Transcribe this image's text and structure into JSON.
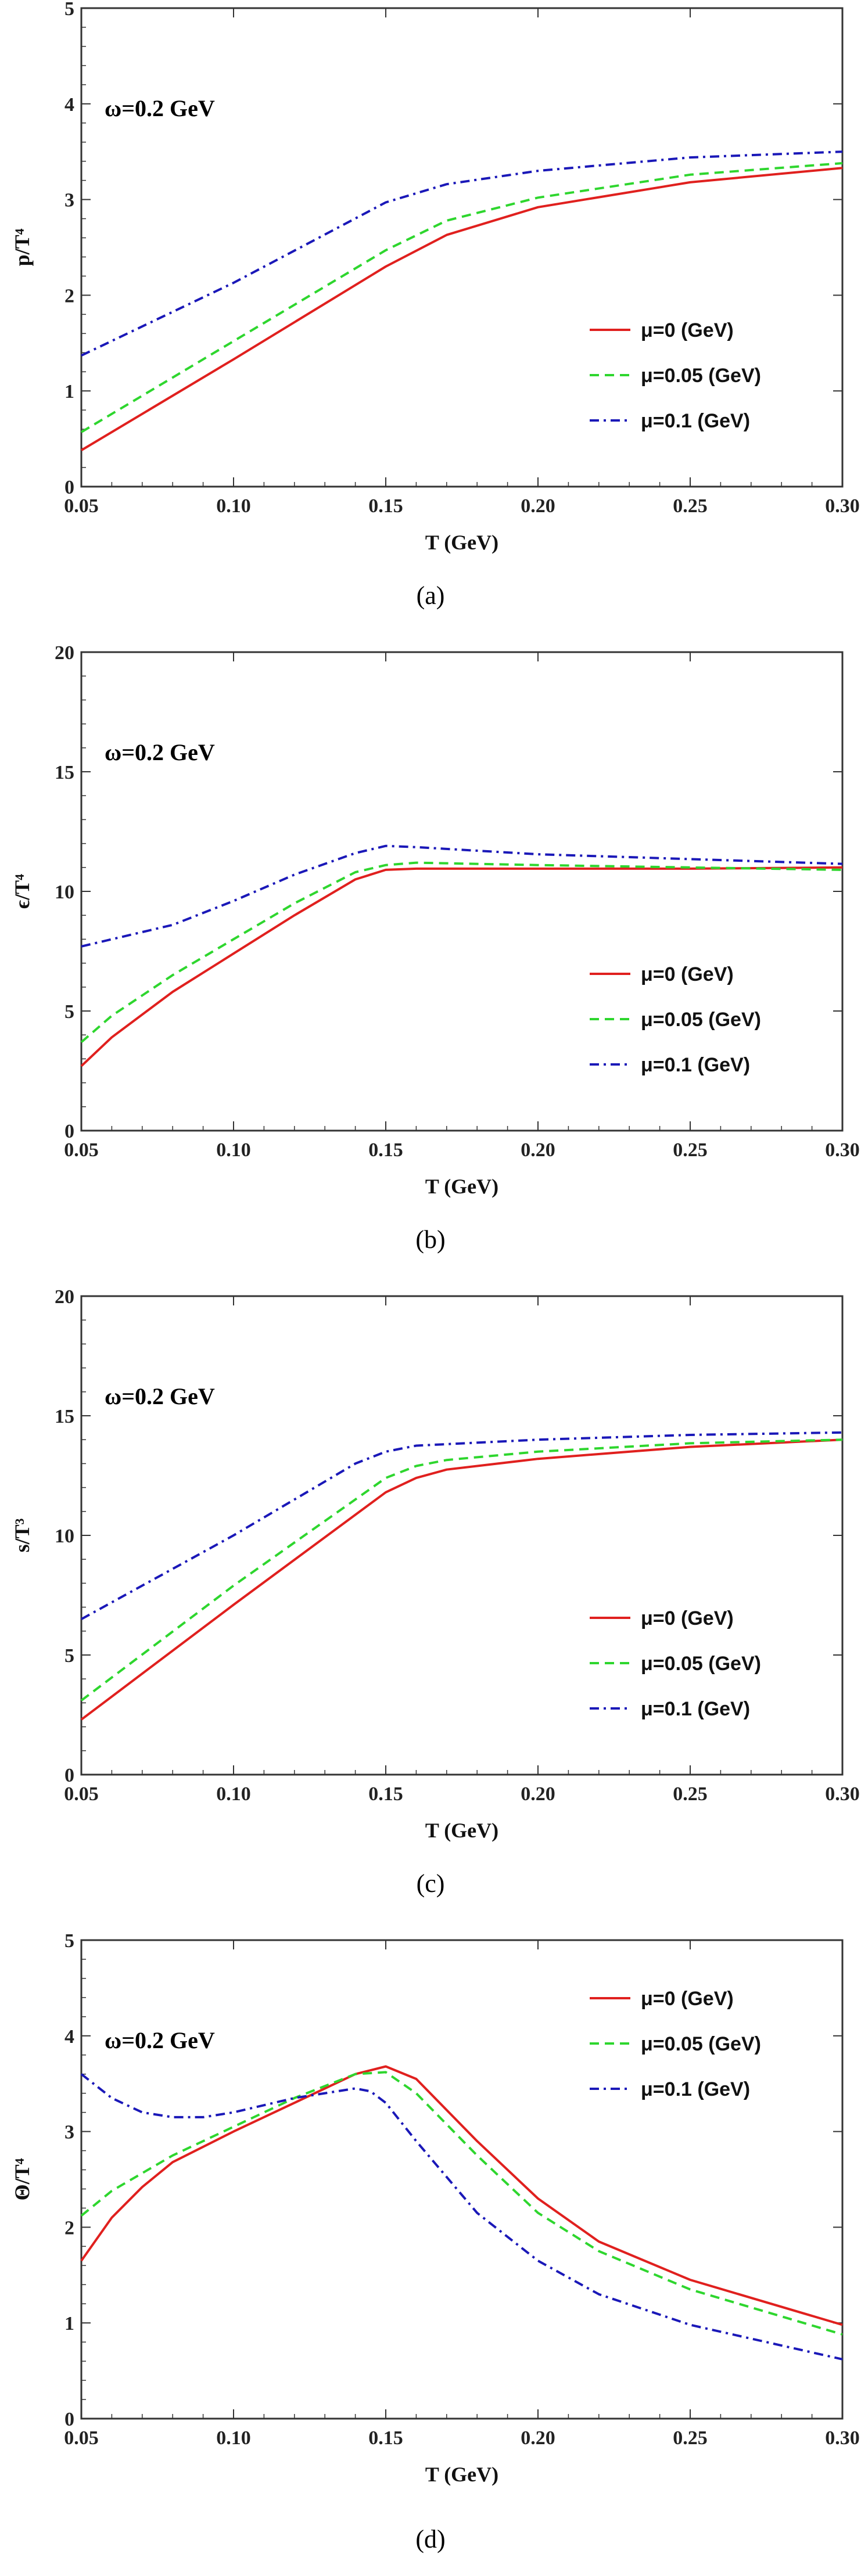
{
  "colors": {
    "mu0": "#e0201e",
    "mu005": "#2ed62e",
    "mu01": "#1a18b8",
    "frame": "#333333"
  },
  "chart_data": [
    {
      "type": "line",
      "caption": "(a)",
      "annotation": "ω=0.2 GeV",
      "xlabel": "T (GeV)",
      "ylabel": "p/T⁴",
      "xlim": [
        0.05,
        0.3
      ],
      "ylim": [
        0,
        5
      ],
      "xticks": [
        "0.05",
        "0.10",
        "0.15",
        "0.20",
        "0.25",
        "0.30"
      ],
      "yticks": [
        "0",
        "1",
        "2",
        "3",
        "4",
        "5"
      ],
      "legend_position": "bottom-right",
      "series": [
        {
          "name": "μ=0 (GeV)",
          "style": "solid",
          "x": [
            0.05,
            0.1,
            0.15,
            0.17,
            0.2,
            0.25,
            0.3
          ],
          "y": [
            0.38,
            1.33,
            2.3,
            2.63,
            2.92,
            3.18,
            3.33
          ]
        },
        {
          "name": "μ=0.05 (GeV)",
          "style": "dashed",
          "x": [
            0.05,
            0.1,
            0.15,
            0.17,
            0.2,
            0.25,
            0.3
          ],
          "y": [
            0.57,
            1.52,
            2.47,
            2.78,
            3.02,
            3.26,
            3.38
          ]
        },
        {
          "name": "μ=0.1 (GeV)",
          "style": "dashdot",
          "x": [
            0.05,
            0.1,
            0.15,
            0.17,
            0.2,
            0.25,
            0.3
          ],
          "y": [
            1.37,
            2.13,
            2.97,
            3.16,
            3.3,
            3.44,
            3.5
          ]
        }
      ]
    },
    {
      "type": "line",
      "caption": "(b)",
      "annotation": "ω=0.2 GeV",
      "xlabel": "T (GeV)",
      "ylabel": "ϵ/T⁴",
      "xlim": [
        0.05,
        0.3
      ],
      "ylim": [
        0,
        20
      ],
      "xticks": [
        "0.05",
        "0.10",
        "0.15",
        "0.20",
        "0.25",
        "0.30"
      ],
      "yticks": [
        "0",
        "5",
        "10",
        "15",
        "20"
      ],
      "legend_position": "bottom-right",
      "series": [
        {
          "name": "μ=0 (GeV)",
          "style": "solid",
          "x": [
            0.05,
            0.06,
            0.08,
            0.1,
            0.12,
            0.14,
            0.15,
            0.16,
            0.2,
            0.25,
            0.3
          ],
          "y": [
            2.7,
            3.9,
            5.8,
            7.4,
            9.0,
            10.5,
            10.9,
            10.95,
            10.95,
            10.95,
            11.0
          ]
        },
        {
          "name": "μ=0.05 (GeV)",
          "style": "dashed",
          "x": [
            0.05,
            0.06,
            0.08,
            0.1,
            0.12,
            0.14,
            0.15,
            0.16,
            0.2,
            0.25,
            0.3
          ],
          "y": [
            3.7,
            4.8,
            6.5,
            8.0,
            9.5,
            10.8,
            11.1,
            11.2,
            11.1,
            11.0,
            10.9
          ]
        },
        {
          "name": "μ=0.1 (GeV)",
          "style": "dashdot",
          "x": [
            0.05,
            0.08,
            0.1,
            0.12,
            0.14,
            0.15,
            0.16,
            0.2,
            0.25,
            0.3
          ],
          "y": [
            7.7,
            8.6,
            9.6,
            10.7,
            11.6,
            11.9,
            11.85,
            11.55,
            11.35,
            11.15
          ]
        }
      ]
    },
    {
      "type": "line",
      "caption": "(c)",
      "annotation": "ω=0.2 GeV",
      "xlabel": "T (GeV)",
      "ylabel": "s/T³",
      "xlim": [
        0.05,
        0.3
      ],
      "ylim": [
        0,
        20
      ],
      "xticks": [
        "0.05",
        "0.10",
        "0.15",
        "0.20",
        "0.25",
        "0.30"
      ],
      "yticks": [
        "0",
        "5",
        "10",
        "15",
        "20"
      ],
      "legend_position": "bottom-right",
      "series": [
        {
          "name": "μ=0 (GeV)",
          "style": "solid",
          "x": [
            0.05,
            0.1,
            0.15,
            0.16,
            0.17,
            0.2,
            0.25,
            0.3
          ],
          "y": [
            2.3,
            7.1,
            11.8,
            12.4,
            12.75,
            13.2,
            13.7,
            14.0
          ]
        },
        {
          "name": "μ=0.05 (GeV)",
          "style": "dashed",
          "x": [
            0.05,
            0.1,
            0.15,
            0.16,
            0.17,
            0.2,
            0.25,
            0.3
          ],
          "y": [
            3.1,
            7.9,
            12.4,
            12.9,
            13.15,
            13.5,
            13.85,
            14.0
          ]
        },
        {
          "name": "μ=0.1 (GeV)",
          "style": "dashdot",
          "x": [
            0.05,
            0.08,
            0.1,
            0.12,
            0.14,
            0.15,
            0.16,
            0.2,
            0.25,
            0.3
          ],
          "y": [
            6.5,
            8.6,
            10.0,
            11.5,
            13.0,
            13.5,
            13.75,
            14.0,
            14.2,
            14.3
          ]
        }
      ]
    },
    {
      "type": "line",
      "caption": "(d)",
      "annotation": "ω=0.2 GeV",
      "xlabel": "T (GeV)",
      "ylabel": "Θ/T⁴",
      "xlim": [
        0.05,
        0.3
      ],
      "ylim": [
        0,
        5
      ],
      "xticks": [
        "0.05",
        "0.10",
        "0.15",
        "0.20",
        "0.25",
        "0.30"
      ],
      "yticks": [
        "0",
        "1",
        "2",
        "3",
        "4",
        "5"
      ],
      "legend_position": "top-right",
      "series": [
        {
          "name": "μ=0 (GeV)",
          "style": "solid",
          "x": [
            0.05,
            0.06,
            0.07,
            0.08,
            0.1,
            0.12,
            0.14,
            0.15,
            0.16,
            0.18,
            0.2,
            0.22,
            0.25,
            0.3
          ],
          "y": [
            1.65,
            2.1,
            2.42,
            2.68,
            3.0,
            3.3,
            3.6,
            3.68,
            3.55,
            2.9,
            2.3,
            1.85,
            1.45,
            0.98
          ]
        },
        {
          "name": "μ=0.05 (GeV)",
          "style": "dashed",
          "x": [
            0.05,
            0.06,
            0.08,
            0.1,
            0.12,
            0.14,
            0.15,
            0.16,
            0.18,
            0.2,
            0.22,
            0.25,
            0.3
          ],
          "y": [
            2.12,
            2.38,
            2.75,
            3.05,
            3.35,
            3.6,
            3.62,
            3.4,
            2.75,
            2.15,
            1.75,
            1.35,
            0.88
          ]
        },
        {
          "name": "μ=0.1 (GeV)",
          "style": "dashdot",
          "x": [
            0.05,
            0.06,
            0.07,
            0.08,
            0.09,
            0.1,
            0.12,
            0.14,
            0.145,
            0.15,
            0.16,
            0.18,
            0.2,
            0.22,
            0.25,
            0.3
          ],
          "y": [
            3.6,
            3.35,
            3.2,
            3.15,
            3.15,
            3.2,
            3.35,
            3.45,
            3.42,
            3.3,
            2.9,
            2.15,
            1.65,
            1.3,
            0.98,
            0.62
          ]
        }
      ]
    }
  ]
}
